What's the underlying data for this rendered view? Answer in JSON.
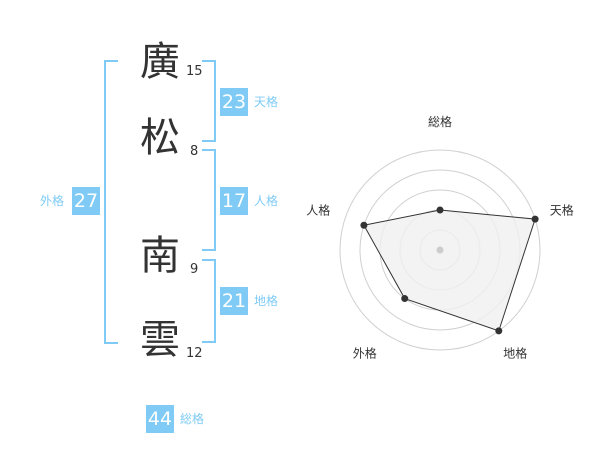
{
  "name": {
    "chars": [
      {
        "char": "廣",
        "strokes": "15"
      },
      {
        "char": "松",
        "strokes": "8"
      },
      {
        "char": "南",
        "strokes": "9"
      },
      {
        "char": "雲",
        "strokes": "12"
      }
    ]
  },
  "scores": {
    "tenkaku": {
      "label": "天格",
      "value": "23"
    },
    "jinkaku": {
      "label": "人格",
      "value": "17"
    },
    "chikaku": {
      "label": "地格",
      "value": "21"
    },
    "gaikaku": {
      "label": "外格",
      "value": "27"
    },
    "soukaku": {
      "label": "総格",
      "value": "44"
    }
  },
  "colors": {
    "accent": "#7fcbf5",
    "polygon_fill": "#f0f0f0",
    "polygon_stroke": "#333333"
  },
  "chart_data": {
    "type": "radar",
    "axes": [
      "総格",
      "天格",
      "地格",
      "外格",
      "人格"
    ],
    "values": [
      2,
      5,
      5,
      3,
      4
    ],
    "max": 5,
    "rings": 5
  }
}
